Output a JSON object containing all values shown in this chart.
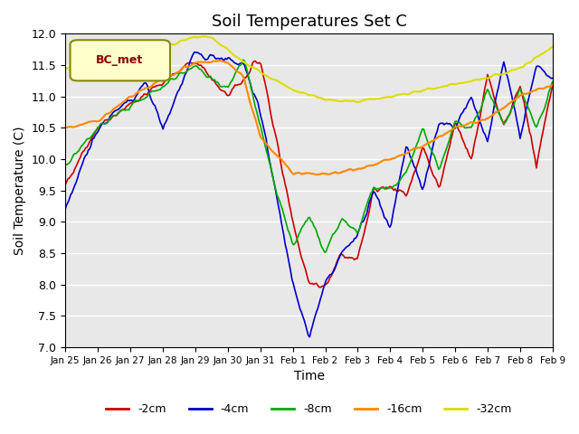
{
  "title": "Soil Temperatures Set C",
  "xlabel": "Time",
  "ylabel": "Soil Temperature (C)",
  "ylim": [
    7.0,
    12.0
  ],
  "yticks": [
    7.0,
    7.5,
    8.0,
    8.5,
    9.0,
    9.5,
    10.0,
    10.5,
    11.0,
    11.5,
    12.0
  ],
  "colors": {
    "-2cm": "#cc0000",
    "-4cm": "#0000cc",
    "-8cm": "#00aa00",
    "-16cm": "#ff8800",
    "-32cm": "#dddd00"
  },
  "legend_label": "BC_met",
  "background_color": "#e8e8e8",
  "n_points": 360,
  "xtick_labels": [
    "Jan 25",
    "Jan 26",
    "Jan 27",
    "Jan 28",
    "Jan 29",
    "Jan 30",
    "Jan 31",
    "Feb 1",
    "Feb 2",
    "Feb 3",
    "Feb 4",
    "Feb 5",
    "Feb 6",
    "Feb 7",
    "Feb 8",
    "Feb 9"
  ],
  "title_fontsize": 13,
  "axis_label_fontsize": 10
}
